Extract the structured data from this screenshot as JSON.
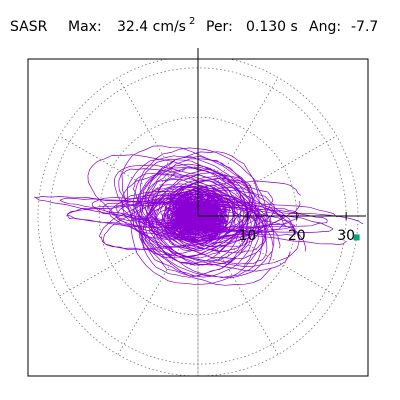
{
  "header": {
    "station": "SASR",
    "max_label": "Max:",
    "max_value": "32.4 cm/s",
    "max_exponent": "2",
    "per_label": "Per:",
    "per_value": "0.130 s",
    "ang_label": "Ang:",
    "ang_value": "-7.7"
  },
  "chart_data": {
    "type": "polar-orbit",
    "rlim": [
      0,
      32.4
    ],
    "ring_values": [
      10,
      20,
      30
    ],
    "tick_labels": [
      "10",
      "20",
      "30"
    ],
    "spokes_deg": 30,
    "max_amplitude": 32.4,
    "max_angle_deg": -7.7,
    "period_s": 0.13,
    "units": "cm/s2",
    "colors": {
      "orbit": "#8a00d4",
      "marker": "#00a37a",
      "grid": "#777777",
      "axes": "#000000"
    }
  }
}
